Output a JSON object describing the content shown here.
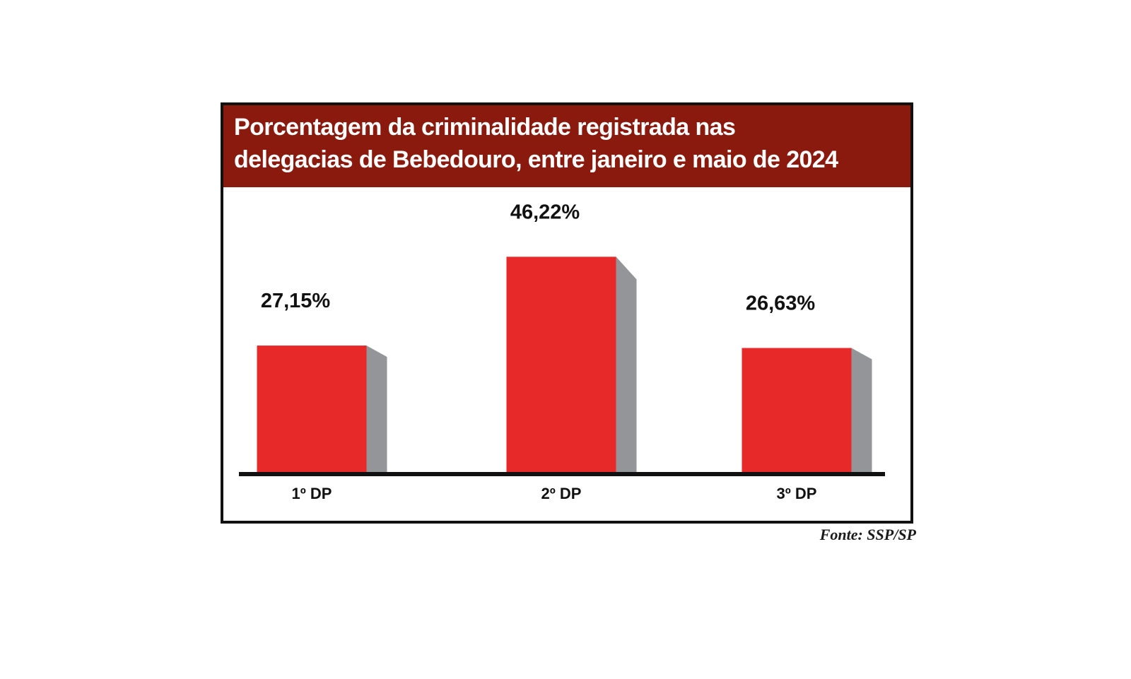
{
  "chart_data": {
    "type": "bar",
    "title": "Porcentagem da criminalidade registrada nas\ndelegacias de Bebedouro, entre janeiro e maio de 2024",
    "categories": [
      "1º DP",
      "2º DP",
      "3º DP"
    ],
    "values": [
      27.15,
      46.22,
      26.63
    ],
    "value_labels": [
      "27,15%",
      "46,22%",
      "26,63%"
    ],
    "ylim": [
      0,
      50
    ],
    "grid": false,
    "legend": "none",
    "bar_color": "#e8292a",
    "bar_side_color": "#939598",
    "header_color": "#8b1a0e"
  },
  "source": "Fonte: SSP/SP"
}
